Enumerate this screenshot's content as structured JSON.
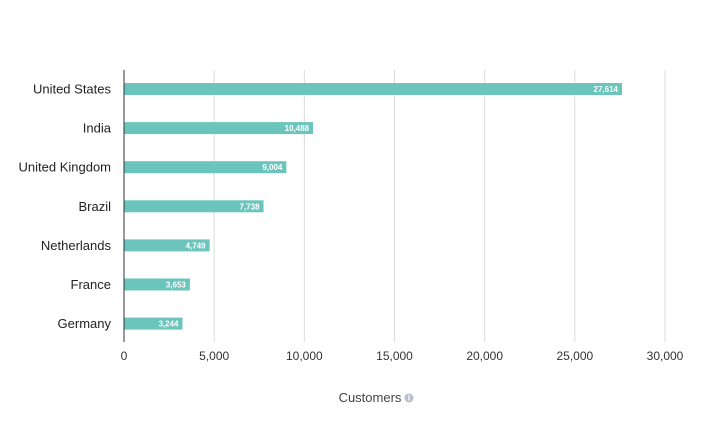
{
  "chart_data": {
    "type": "bar",
    "orientation": "horizontal",
    "categories": [
      "United States",
      "India",
      "United Kingdom",
      "Brazil",
      "Netherlands",
      "France",
      "Germany"
    ],
    "values": [
      27614,
      10488,
      9004,
      7738,
      4749,
      3653,
      3244
    ],
    "value_labels": [
      "27,614",
      "10,488",
      "9,004",
      "7,738",
      "4,749",
      "3,653",
      "3,244"
    ],
    "xlabel": "Customers",
    "xlim": [
      0,
      30000
    ],
    "xticks": [
      0,
      5000,
      10000,
      15000,
      20000,
      25000,
      30000
    ],
    "xtick_labels": [
      "0",
      "5,000",
      "10,000",
      "15,000",
      "20,000",
      "25,000",
      "30,000"
    ],
    "grid": "vertical",
    "bar_color": "#6cc5bc",
    "info_icon": "info-icon"
  }
}
